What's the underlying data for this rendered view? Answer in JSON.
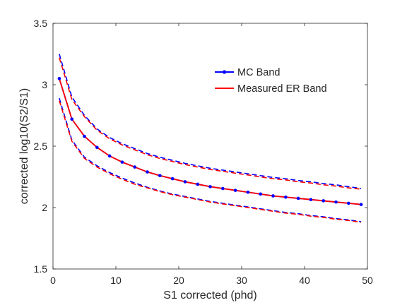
{
  "chart_data": {
    "type": "line",
    "title": "",
    "xlabel": "S1 corrected (phd)",
    "ylabel": "corrected log10(S2/S1)",
    "xlim": [
      0,
      50
    ],
    "ylim": [
      1.5,
      3.5
    ],
    "grid": false,
    "legend_position": "top-right",
    "x_ticks": [
      0,
      10,
      20,
      30,
      40,
      50
    ],
    "y_ticks": [
      1.5,
      2,
      2.5,
      3,
      3.5
    ],
    "x_tick_labels": [
      "0",
      "10",
      "20",
      "30",
      "40",
      "50"
    ],
    "y_tick_labels": [
      "1.5",
      "2",
      "2.5",
      "3",
      "3.5"
    ],
    "x": [
      1,
      3,
      5,
      7,
      9,
      11,
      13,
      15,
      17,
      19,
      21,
      23,
      25,
      27,
      29,
      31,
      33,
      35,
      37,
      39,
      41,
      43,
      45,
      47,
      49
    ],
    "series": [
      {
        "name": "MC Band",
        "color": "#0000ff",
        "style": "solid",
        "marker": "dot",
        "in_legend": true,
        "values": [
          3.05,
          2.72,
          2.58,
          2.49,
          2.42,
          2.37,
          2.33,
          2.29,
          2.26,
          2.235,
          2.21,
          2.19,
          2.17,
          2.155,
          2.14,
          2.125,
          2.11,
          2.095,
          2.085,
          2.075,
          2.065,
          2.055,
          2.045,
          2.035,
          2.025
        ]
      },
      {
        "name": "Measured ER Band",
        "color": "#ff0000",
        "style": "solid",
        "marker": "none",
        "in_legend": true,
        "values": [
          3.05,
          2.72,
          2.58,
          2.49,
          2.42,
          2.37,
          2.33,
          2.29,
          2.26,
          2.235,
          2.21,
          2.19,
          2.17,
          2.155,
          2.14,
          2.125,
          2.11,
          2.095,
          2.085,
          2.075,
          2.065,
          2.055,
          2.045,
          2.035,
          2.025
        ]
      },
      {
        "name": "",
        "color": "#0000ff",
        "style": "dashed",
        "marker": "none",
        "in_legend": false,
        "values": [
          3.25,
          2.9,
          2.75,
          2.64,
          2.57,
          2.52,
          2.48,
          2.44,
          2.41,
          2.385,
          2.36,
          2.34,
          2.32,
          2.305,
          2.29,
          2.275,
          2.26,
          2.245,
          2.235,
          2.22,
          2.21,
          2.195,
          2.185,
          2.17,
          2.155
        ]
      },
      {
        "name": "",
        "color": "#ff0000",
        "style": "dashed",
        "marker": "none",
        "in_legend": false,
        "values": [
          3.22,
          2.88,
          2.74,
          2.63,
          2.56,
          2.51,
          2.47,
          2.43,
          2.4,
          2.375,
          2.35,
          2.33,
          2.31,
          2.295,
          2.28,
          2.265,
          2.25,
          2.235,
          2.225,
          2.21,
          2.2,
          2.185,
          2.175,
          2.16,
          2.15
        ]
      },
      {
        "name": "",
        "color": "#0000ff",
        "style": "dashed",
        "marker": "none",
        "in_legend": false,
        "values": [
          2.89,
          2.55,
          2.41,
          2.34,
          2.285,
          2.24,
          2.2,
          2.165,
          2.135,
          2.11,
          2.09,
          2.07,
          2.05,
          2.035,
          2.02,
          2.005,
          1.99,
          1.975,
          1.96,
          1.95,
          1.935,
          1.925,
          1.91,
          1.9,
          1.885
        ]
      },
      {
        "name": "",
        "color": "#ff0000",
        "style": "dashed",
        "marker": "none",
        "in_legend": false,
        "values": [
          2.87,
          2.54,
          2.4,
          2.33,
          2.275,
          2.23,
          2.19,
          2.16,
          2.13,
          2.105,
          2.085,
          2.065,
          2.045,
          2.03,
          2.015,
          2.0,
          1.985,
          1.97,
          1.955,
          1.945,
          1.93,
          1.92,
          1.905,
          1.895,
          1.88
        ]
      }
    ]
  }
}
